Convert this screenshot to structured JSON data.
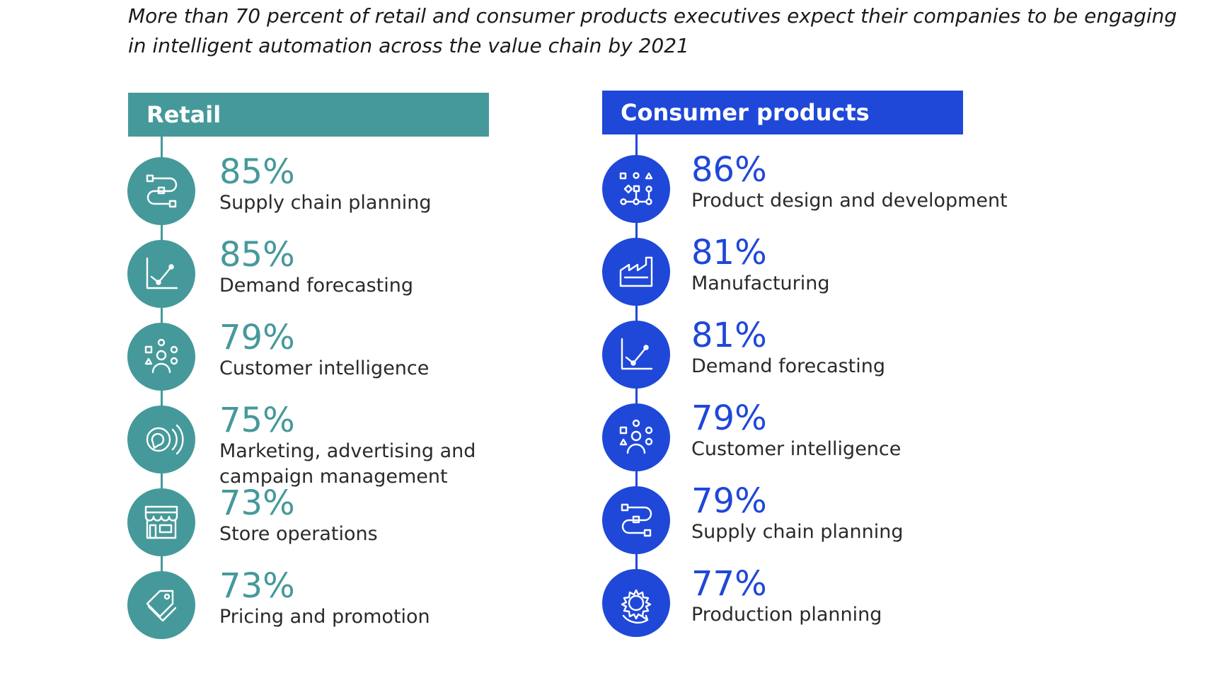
{
  "headline": "More than 70 percent of retail and consumer products executives expect their companies to be engaging in intelligent automation across the value chain by 2021",
  "colors": {
    "retail": "#46999a",
    "consumer": "#1f48d8"
  },
  "chart_data": [
    {
      "type": "table",
      "title": "Retail",
      "items": [
        {
          "value": "85%",
          "label": "Supply chain planning",
          "icon": "supply-chain-icon"
        },
        {
          "value": "85%",
          "label": "Demand forecasting",
          "icon": "line-chart-icon"
        },
        {
          "value": "79%",
          "label": "Customer intelligence",
          "icon": "people-shapes-icon"
        },
        {
          "value": "75%",
          "label": "Marketing, advertising and",
          "label2": "campaign management",
          "icon": "chat-broadcast-icon"
        },
        {
          "value": "73%",
          "label": "Store operations",
          "icon": "storefront-icon"
        },
        {
          "value": "73%",
          "label": "Pricing and promotion",
          "icon": "price-tag-icon"
        }
      ]
    },
    {
      "type": "table",
      "title": "Consumer products",
      "items": [
        {
          "value": "86%",
          "label": "Product design and development",
          "icon": "design-network-icon"
        },
        {
          "value": "81%",
          "label": "Manufacturing",
          "icon": "factory-icon"
        },
        {
          "value": "81%",
          "label": "Demand forecasting",
          "icon": "line-chart-icon"
        },
        {
          "value": "79%",
          "label": "Customer intelligence",
          "icon": "people-shapes-icon"
        },
        {
          "value": "79%",
          "label": "Supply chain planning",
          "icon": "supply-chain-icon"
        },
        {
          "value": "77%",
          "label": "Production planning",
          "icon": "gear-cycle-icon"
        }
      ]
    }
  ]
}
